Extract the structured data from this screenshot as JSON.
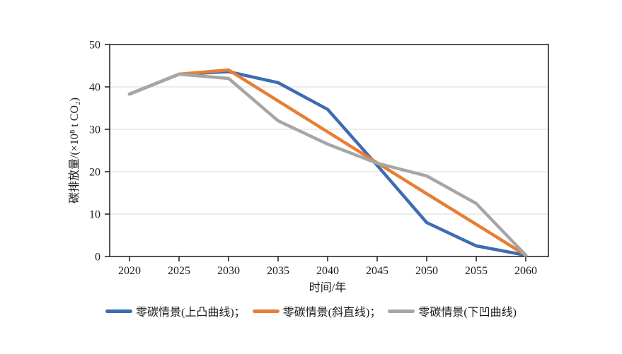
{
  "chart_data": {
    "type": "line",
    "title": "",
    "xlabel": "时间/年",
    "ylabel": "碳排放量/(×10⁸ t CO₂)",
    "x": [
      2020,
      2025,
      2030,
      2035,
      2040,
      2045,
      2050,
      2055,
      2060
    ],
    "ylim": [
      0,
      50
    ],
    "yticks": [
      0,
      10,
      20,
      30,
      40,
      50
    ],
    "grid": true,
    "legend_position": "bottom",
    "frame_color": "#1a1a1a",
    "gridline_color": "#d9d9d9",
    "series": [
      {
        "name": "零碳情景(上凸曲线)",
        "legend_label": "零碳情景(上凸曲线)；",
        "color": "#3e6cb3",
        "values": [
          38.3,
          43.0,
          43.6,
          41.0,
          34.7,
          21.5,
          8.0,
          2.5,
          0.3
        ]
      },
      {
        "name": "零碳情景(斜直线)",
        "legend_label": "零碳情景(斜直线)；",
        "color": "#e87e35",
        "values": [
          38.3,
          43.0,
          44.0,
          36.7,
          29.4,
          22.1,
          14.8,
          7.6,
          0.3
        ]
      },
      {
        "name": "零碳情景(下凹曲线)",
        "legend_label": "零碳情景(下凹曲线)",
        "color": "#a6a6a6",
        "values": [
          38.3,
          43.0,
          42.0,
          32.0,
          26.5,
          22.0,
          19.0,
          12.5,
          0.3
        ]
      }
    ]
  }
}
